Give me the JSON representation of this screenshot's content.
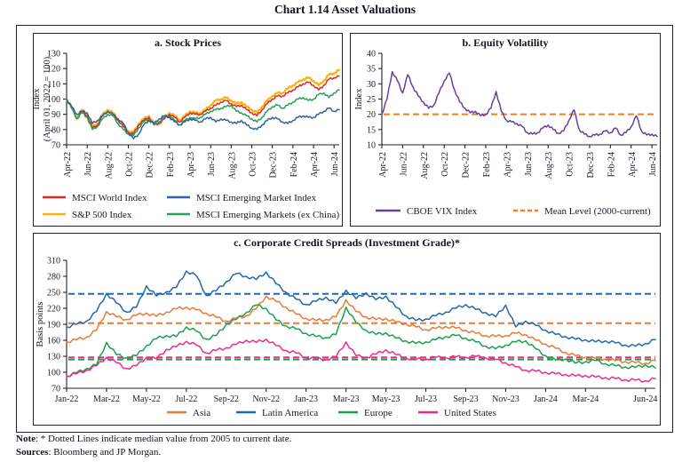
{
  "page_title": "Chart 1.14 Asset Valuations",
  "note": {
    "label": "Note",
    "text": ": * Dotted Lines indicate median value from 2005 to current date."
  },
  "sources": {
    "label": "Sources",
    "text": ": Bloomberg and JP Morgan."
  },
  "colors": {
    "msci_world": "#e0262c",
    "sp500": "#f9b414",
    "msci_em": "#2e61a8",
    "msci_em_ex_china": "#27a254",
    "vix": "#68409c",
    "mean_level": "#f08122",
    "asia": "#e87b35",
    "latin_america": "#1e6ab0",
    "europe": "#1ca04c",
    "united_states": "#ee2d8b",
    "axis_text": "#1c1c28",
    "border": "#23232e"
  },
  "chart_data": [
    {
      "id": "a",
      "type": "line",
      "title": "a. Stock Prices",
      "ylabel": [
        "Index",
        "(April 01, 2022 = 100)"
      ],
      "ylim": [
        70,
        130
      ],
      "yticks": [
        70,
        80,
        90,
        100,
        110,
        120,
        130
      ],
      "grid": false,
      "legend_position": "bottom",
      "xticklabels": [
        "Apr-22",
        "Jun-22",
        "Aug-22",
        "Oct-22",
        "Dec-22",
        "Feb-23",
        "Apr-23",
        "Jun-23",
        "Aug-23",
        "Oct-23",
        "Dec-23",
        "Feb-24",
        "Apr-24",
        "Jun-24"
      ],
      "xtick_idx": [
        0,
        4,
        8,
        12,
        16,
        20,
        24,
        28,
        32,
        36,
        40,
        44,
        48,
        52
      ],
      "xtick_rotated": true,
      "xmax": 53,
      "series": [
        {
          "name": "MSCI World Index",
          "color": "#e0262c",
          "values": [
            100,
            94,
            87,
            92,
            89,
            81,
            83,
            89,
            92,
            90,
            86,
            82,
            78,
            77,
            83,
            86,
            88,
            83,
            84,
            87,
            90,
            88,
            85,
            88,
            91,
            90,
            90,
            92,
            94,
            96,
            98,
            99,
            97,
            95,
            96,
            93,
            91,
            89,
            93,
            97,
            100,
            102,
            102,
            104,
            106,
            108,
            110,
            111,
            109,
            106,
            109,
            113,
            114,
            115
          ]
        },
        {
          "name": "S&P 500 Index",
          "color": "#f9b414",
          "values": [
            100,
            94,
            88,
            93,
            90,
            82,
            84,
            90,
            93,
            91,
            87,
            83,
            79,
            78,
            84,
            87,
            89,
            84,
            85,
            88,
            91,
            89,
            86,
            89,
            92,
            91,
            91,
            93,
            96,
            99,
            100,
            101,
            99,
            97,
            98,
            95,
            93,
            91,
            95,
            99,
            102,
            104,
            104,
            107,
            109,
            111,
            113,
            114,
            112,
            109,
            112,
            116,
            117,
            119
          ]
        },
        {
          "name": "MSCI Emerging Market Index",
          "color": "#2e61a8",
          "values": [
            100,
            95,
            90,
            92,
            91,
            84,
            86,
            89,
            92,
            90,
            87,
            84,
            78,
            74,
            77,
            83,
            86,
            84,
            87,
            89,
            88,
            85,
            83,
            85,
            87,
            86,
            85,
            87,
            88,
            85,
            87,
            86,
            85,
            84,
            86,
            83,
            81,
            80,
            83,
            86,
            88,
            87,
            85,
            84,
            86,
            88,
            89,
            88,
            88,
            90,
            92,
            94,
            92,
            93
          ]
        },
        {
          "name": "MSCI Emerging Markets (ex China)",
          "color": "#27a254",
          "values": [
            100,
            94,
            87,
            91,
            88,
            80,
            82,
            87,
            90,
            89,
            84,
            80,
            77,
            76,
            81,
            85,
            87,
            83,
            85,
            88,
            89,
            86,
            83,
            86,
            88,
            87,
            88,
            90,
            92,
            93,
            94,
            95,
            96,
            92,
            91,
            89,
            87,
            85,
            88,
            92,
            95,
            96,
            94,
            96,
            98,
            100,
            101,
            99,
            100,
            103,
            104,
            101,
            104,
            106
          ]
        }
      ],
      "reflines": [],
      "legend": [
        {
          "label": "MSCI World Index",
          "color": "#e0262c",
          "dash": false
        },
        {
          "label": "S&P 500 Index",
          "color": "#f9b414",
          "dash": false
        },
        {
          "label": "MSCI Emerging Market Index",
          "color": "#2e61a8",
          "dash": false
        },
        {
          "label": "MSCI Emerging Markets (ex China)",
          "color": "#27a254",
          "dash": false
        }
      ]
    },
    {
      "id": "b",
      "type": "line",
      "title": "b. Equity Volatility",
      "ylabel": [
        "Index"
      ],
      "ylim": [
        10,
        40
      ],
      "yticks": [
        10,
        15,
        20,
        25,
        30,
        35,
        40
      ],
      "grid": false,
      "legend_position": "bottom",
      "xticklabels": [
        "Apr-22",
        "Jun-22",
        "Aug-22",
        "Oct-22",
        "Dec-22",
        "Feb-23",
        "Apr-23",
        "Jun-23",
        "Aug-23",
        "Oct-23",
        "Dec-23",
        "Feb-24",
        "Apr-24",
        "Jun-24"
      ],
      "xtick_idx": [
        0,
        4,
        8,
        12,
        16,
        20,
        24,
        28,
        32,
        36,
        40,
        44,
        48,
        52
      ],
      "xtick_rotated": true,
      "xmax": 53,
      "series": [
        {
          "name": "CBOE VIX Index",
          "color": "#68409c",
          "values": [
            20,
            25,
            34,
            31,
            27,
            33,
            29,
            26,
            24,
            22,
            23,
            27,
            31,
            33.5,
            28,
            24,
            22,
            20.5,
            21,
            19.5,
            20,
            22,
            27.5,
            21,
            18,
            17.5,
            17,
            16,
            14,
            13.5,
            14,
            15.5,
            16.5,
            15,
            13.8,
            14.5,
            18,
            21.5,
            15,
            13.5,
            12.8,
            13.2,
            13.5,
            14.5,
            14,
            15.5,
            13.2,
            14,
            16,
            19.5,
            14.5,
            13.2,
            13.5,
            12.7
          ]
        }
      ],
      "reflines": [
        {
          "name": "Mean Level (2000-current)",
          "value": 20,
          "color": "#f08122"
        }
      ],
      "legend": [
        {
          "label": "CBOE VIX Index",
          "color": "#68409c",
          "dash": false
        },
        {
          "label": "Mean Level (2000-current)",
          "color": "#f08122",
          "dash": true
        }
      ]
    },
    {
      "id": "c",
      "type": "line",
      "title": "c. Corporate Credit Spreads (Investment Grade)*",
      "ylabel": [
        "Basis points"
      ],
      "ylim": [
        70,
        310
      ],
      "yticks": [
        70,
        100,
        130,
        160,
        190,
        220,
        250,
        280,
        310
      ],
      "grid": false,
      "legend_position": "bottom",
      "xticklabels": [
        "Jan-22",
        "Mar-22",
        "May-22",
        "Jul-22",
        "Sep-22",
        "Nov-22",
        "Jan-23",
        "Mar-23",
        "May-23",
        "Jul-23",
        "Sep-23",
        "Nov-23",
        "Jan-24",
        "Mar-24",
        "Jun-24"
      ],
      "xtick_idx": [
        0,
        4,
        8,
        12,
        16,
        20,
        24,
        28,
        32,
        36,
        40,
        44,
        48,
        52,
        58
      ],
      "xtick_rotated": false,
      "xmax": 59,
      "series": [
        {
          "name": "Asia",
          "color": "#e87b35",
          "values": [
            157,
            161,
            166,
            179,
            214,
            204,
            199,
            207,
            211,
            205,
            213,
            219,
            222,
            217,
            211,
            203,
            196,
            201,
            206,
            219,
            243,
            233,
            222,
            209,
            201,
            197,
            199,
            204,
            236,
            214,
            204,
            199,
            201,
            194,
            191,
            185,
            180,
            182,
            186,
            183,
            179,
            173,
            169,
            167,
            169,
            173,
            171,
            160,
            153,
            145,
            137,
            131,
            128,
            126,
            125,
            122,
            120,
            118,
            117,
            122
          ]
        },
        {
          "name": "Latin America",
          "color": "#1e6ab0",
          "values": [
            185,
            190,
            196,
            214,
            248,
            230,
            213,
            222,
            262,
            243,
            251,
            259,
            290,
            281,
            244,
            253,
            270,
            285,
            280,
            274,
            288,
            266,
            250,
            237,
            227,
            233,
            241,
            229,
            254,
            238,
            249,
            236,
            243,
            222,
            206,
            197,
            200,
            206,
            213,
            220,
            227,
            218,
            212,
            204,
            226,
            185,
            196,
            188,
            179,
            171,
            167,
            162,
            161,
            157,
            159,
            155,
            151,
            149,
            154,
            161
          ]
        },
        {
          "name": "Europe",
          "color": "#1ca04c",
          "values": [
            93,
            99,
            107,
            114,
            156,
            133,
            127,
            131,
            150,
            163,
            169,
            167,
            185,
            177,
            162,
            169,
            190,
            199,
            212,
            226,
            220,
            198,
            187,
            181,
            173,
            167,
            165,
            171,
            222,
            193,
            179,
            171,
            174,
            164,
            159,
            154,
            157,
            161,
            167,
            169,
            164,
            157,
            149,
            144,
            151,
            157,
            159,
            144,
            131,
            123,
            125,
            117,
            120,
            122,
            116,
            112,
            110,
            109,
            114,
            108
          ]
        },
        {
          "name": "United States",
          "color": "#ee2d8b",
          "values": [
            93,
            97,
            104,
            112,
            128,
            118,
            107,
            112,
            128,
            125,
            143,
            148,
            158,
            151,
            136,
            141,
            146,
            152,
            160,
            156,
            162,
            150,
            141,
            136,
            128,
            125,
            124,
            129,
            157,
            131,
            128,
            134,
            142,
            133,
            127,
            124,
            125,
            128,
            127,
            129,
            128,
            130,
            127,
            124,
            118,
            110,
            104,
            102,
            100,
            97,
            96,
            93,
            94,
            91,
            90,
            88,
            86,
            85,
            84,
            88
          ]
        }
      ],
      "reflines": [
        {
          "name": "Latin America median",
          "value": 247,
          "color": "#1e6ab0"
        },
        {
          "name": "Asia median",
          "value": 192,
          "color": "#e87b35"
        },
        {
          "name": "United States median",
          "value": 128,
          "color": "#ee2d8b"
        },
        {
          "name": "Europe median",
          "value": 124,
          "color": "#1ca04c"
        }
      ],
      "legend": [
        {
          "label": "Asia",
          "color": "#e87b35",
          "dash": false
        },
        {
          "label": "Latin America",
          "color": "#1e6ab0",
          "dash": false
        },
        {
          "label": "Europe",
          "color": "#1ca04c",
          "dash": false
        },
        {
          "label": "United States",
          "color": "#ee2d8b",
          "dash": false
        }
      ]
    }
  ]
}
